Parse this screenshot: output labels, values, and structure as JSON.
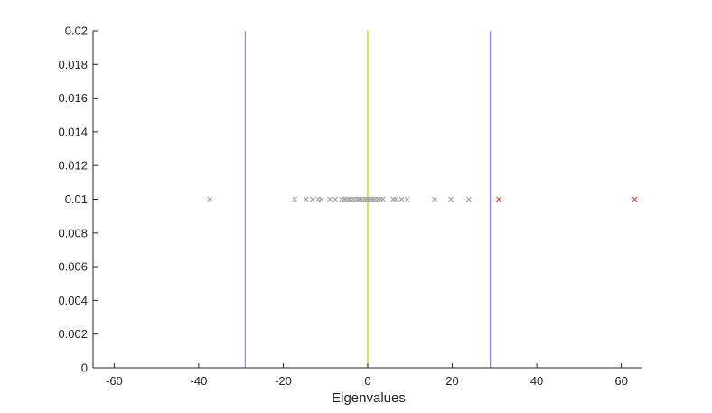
{
  "chart_data": {
    "type": "scatter",
    "title": "",
    "xlabel": "Eigenvalues",
    "ylabel": "",
    "xlim": [
      -65,
      65
    ],
    "ylim": [
      0,
      0.02
    ],
    "x_ticks": [
      -60,
      -40,
      -20,
      0,
      20,
      40,
      60
    ],
    "x_tick_labels": [
      "-60",
      "-40",
      "-20",
      "0",
      "20",
      "40",
      "60"
    ],
    "y_ticks": [
      0,
      0.002,
      0.004,
      0.006,
      0.008,
      0.01,
      0.012,
      0.014,
      0.016,
      0.018,
      0.02
    ],
    "y_tick_labels": [
      "0",
      "0.002",
      "0.004",
      "0.006",
      "0.008",
      "0.01",
      "0.012",
      "0.014",
      "0.016",
      "0.018",
      "0.02"
    ],
    "grid": false,
    "series": [
      {
        "color": "#a0a0a0",
        "marker": "x",
        "y": 0.01,
        "x": [
          -37.4,
          -17.3,
          -14.6,
          -13.1,
          -11.7,
          -11.0,
          -9.0,
          -7.7,
          -6.2,
          -5.6,
          -5.1,
          -4.5,
          -4.0,
          -3.4,
          -2.8,
          -2.2,
          -1.8,
          -1.2,
          -0.6,
          -0.2,
          0.3,
          0.8,
          1.3,
          1.8,
          2.4,
          3.0,
          3.6,
          6.0,
          6.6,
          8.0,
          9.3,
          15.8,
          19.7,
          23.9
        ]
      },
      {
        "color": "#d04040",
        "marker": "x",
        "y": 0.01,
        "x": [
          31.0,
          63.2
        ]
      }
    ],
    "vertical_lines": [
      {
        "x": -29.0,
        "color": "#8a8ae0"
      },
      {
        "x": 0.0,
        "color": "#d8c000"
      },
      {
        "x": 29.0,
        "color": "#8a8ae0"
      }
    ]
  }
}
